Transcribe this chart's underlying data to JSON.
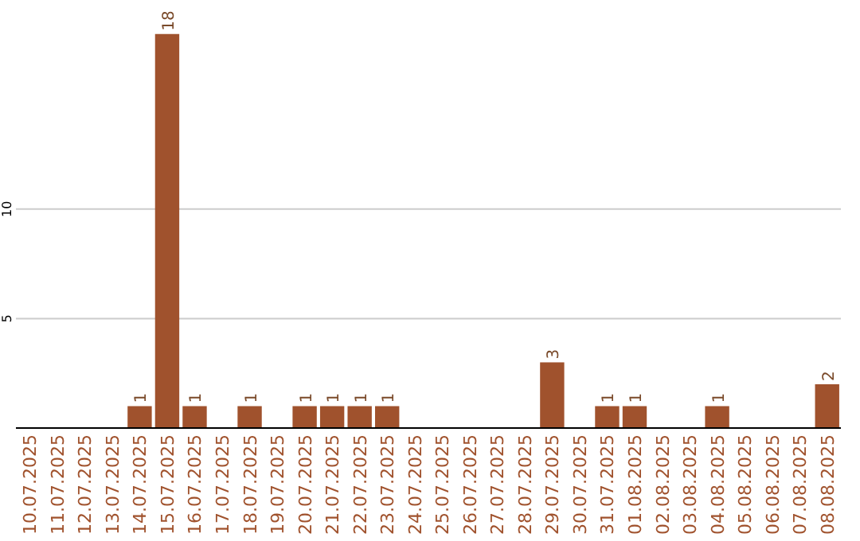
{
  "chart_data": {
    "type": "bar",
    "categories": [
      "10.07.2025",
      "11.07.2025",
      "12.07.2025",
      "13.07.2025",
      "14.07.2025",
      "15.07.2025",
      "16.07.2025",
      "17.07.2025",
      "18.07.2025",
      "19.07.2025",
      "20.07.2025",
      "21.07.2025",
      "22.07.2025",
      "23.07.2025",
      "24.07.2025",
      "25.07.2025",
      "26.07.2025",
      "27.07.2025",
      "28.07.2025",
      "29.07.2025",
      "30.07.2025",
      "31.07.2025",
      "01.08.2025",
      "02.08.2025",
      "03.08.2025",
      "04.08.2025",
      "05.08.2025",
      "06.08.2025",
      "07.08.2025",
      "08.08.2025"
    ],
    "values": [
      0,
      0,
      0,
      0,
      1,
      18,
      1,
      0,
      1,
      0,
      1,
      1,
      1,
      1,
      0,
      0,
      0,
      0,
      0,
      3,
      0,
      1,
      1,
      0,
      0,
      1,
      0,
      0,
      0,
      2
    ],
    "value_labels": [
      null,
      null,
      null,
      null,
      "1",
      "18",
      "1",
      null,
      "1",
      null,
      "1",
      "1",
      "1",
      "1",
      null,
      null,
      null,
      null,
      null,
      "3",
      null,
      "1",
      "1",
      null,
      null,
      "1",
      null,
      null,
      null,
      "2"
    ],
    "color": "#a0522d",
    "ylim": [
      0,
      18.1
    ],
    "yticks": [
      5,
      10
    ],
    "grid": "y"
  }
}
